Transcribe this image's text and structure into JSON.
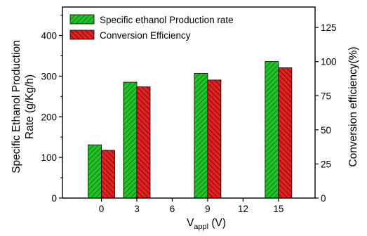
{
  "chart_data": {
    "type": "bar",
    "x_label_main": "V",
    "x_label_sub": "appl",
    "x_label_unit": " (V)",
    "y_left_label_line1": "Specific Ethanol Production",
    "y_left_label_line2": "Rate (g/Kg/h)",
    "y_right_label": "Conversion efficiency(%)",
    "x_ticks": [
      "0",
      "3",
      "6",
      "9",
      "12",
      "15"
    ],
    "x_values": [
      0,
      3,
      6,
      9,
      12,
      15
    ],
    "xlim": [
      -3.3,
      18.1
    ],
    "y_left_ticks": [
      "0",
      "100",
      "200",
      "300",
      "400"
    ],
    "y_left_lim": [
      0,
      470
    ],
    "y_right_ticks": [
      "0",
      "25",
      "50",
      "75",
      "100",
      "125"
    ],
    "y_right_lim": [
      0,
      140
    ],
    "grid": false,
    "legend_position": "top-left",
    "series": [
      {
        "name": "Specific ethanol Production rate",
        "axis": "left",
        "x": [
          0,
          3,
          9,
          15
        ],
        "values": [
          131,
          285,
          307,
          336
        ],
        "color": "#22c22a",
        "hatch_color": "#0a6a0a"
      },
      {
        "name": "Conversion Efficiency",
        "axis": "right",
        "x": [
          0,
          3,
          9,
          15
        ],
        "values": [
          35,
          81.5,
          86.5,
          95.5
        ],
        "color": "#e02222",
        "hatch_color": "#6a0000"
      }
    ]
  }
}
